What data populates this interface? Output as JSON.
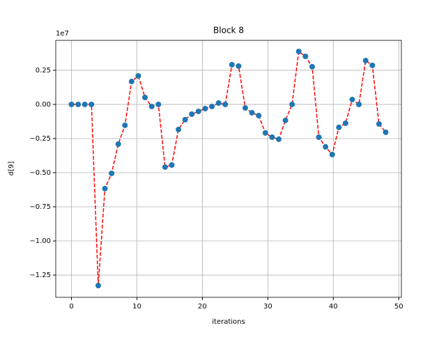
{
  "chart_data": {
    "type": "line",
    "title": "Block 8",
    "xlabel": "iterations",
    "ylabel": "d[9]",
    "y_offset_text": "1e7",
    "x": [
      0,
      1.02,
      2.04,
      3.06,
      4.09,
      5.11,
      6.13,
      7.15,
      8.17,
      9.19,
      10.21,
      11.23,
      12.26,
      13.28,
      14.3,
      15.32,
      16.34,
      17.36,
      18.38,
      19.4,
      20.43,
      21.45,
      22.47,
      23.49,
      24.51,
      25.53,
      26.55,
      27.57,
      28.6,
      29.62,
      30.64,
      31.66,
      32.68,
      33.7,
      34.72,
      35.74,
      36.77,
      37.79,
      38.81,
      39.83,
      40.85,
      41.87,
      42.89,
      43.91,
      44.94,
      45.96,
      46.98,
      48
    ],
    "series": [
      {
        "marker_color": "#1f77b4",
        "line_color": "#ff0000",
        "line_style": "dashed",
        "values": [
          0,
          0,
          0,
          0,
          -1.327,
          -0.617,
          -0.505,
          -0.291,
          -0.153,
          0.168,
          0.209,
          0.051,
          -0.015,
          0,
          -0.459,
          -0.444,
          -0.184,
          -0.112,
          -0.071,
          -0.051,
          -0.031,
          -0.015,
          0.01,
          0,
          0.291,
          0.281,
          -0.026,
          -0.061,
          -0.082,
          -0.209,
          -0.24,
          -0.255,
          -0.117,
          0,
          0.388,
          0.352,
          0.276,
          -0.24,
          -0.311,
          -0.367,
          -0.168,
          -0.138,
          0.036,
          0,
          0.321,
          0.286,
          -0.143,
          -0.204
        ]
      }
    ],
    "xlim": [
      -2.4,
      50.4
    ],
    "xticks": [
      0,
      10,
      20,
      30,
      40,
      50
    ],
    "ylim": [
      -1.413,
      0.469
    ],
    "yticks": [
      {
        "value": -1.25,
        "label": "−1.25"
      },
      {
        "value": -1,
        "label": "−1.00"
      },
      {
        "value": -0.75,
        "label": "−0.75"
      },
      {
        "value": -0.5,
        "label": "−0.50"
      },
      {
        "value": -0.25,
        "label": "−0.25"
      },
      {
        "value": 0,
        "label": "0.00"
      },
      0.25
    ],
    "grid": true
  }
}
